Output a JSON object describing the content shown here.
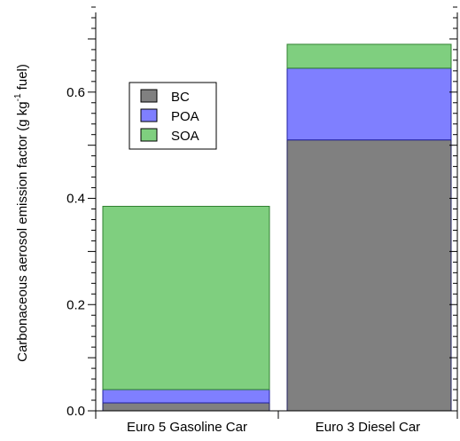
{
  "chart_data": {
    "type": "bar",
    "stacked": true,
    "categories": [
      "Euro 5 Gasoline Car",
      "Euro 3 Diesel Car"
    ],
    "series": [
      {
        "name": "BC",
        "values": [
          0.015,
          0.51
        ],
        "color": "#808080"
      },
      {
        "name": "POA",
        "values": [
          0.025,
          0.135
        ],
        "color": "#7f7fff"
      },
      {
        "name": "SOA",
        "values": [
          0.345,
          0.045
        ],
        "color": "#7fcf7f"
      }
    ],
    "ylabel": {
      "main": "Carbonaceous aerosol emission factor (g kg",
      "superscript": "-1",
      "suffix": " fuel)"
    },
    "ylim": [
      0,
      0.75
    ],
    "yticks": [
      {
        "value": 0.0,
        "label": "0.0"
      },
      {
        "value": 0.2,
        "label": "0.2"
      },
      {
        "value": 0.4,
        "label": "0.4"
      },
      {
        "value": 0.6,
        "label": "0.6"
      }
    ],
    "y_minor_step": 0.02,
    "legend": {
      "position": "top-left",
      "entries": [
        "BC",
        "POA",
        "SOA"
      ]
    },
    "grid": false,
    "segment_edge_colors": {
      "BC": "#202060",
      "POA": "#2020a0",
      "SOA": "#308030"
    }
  }
}
